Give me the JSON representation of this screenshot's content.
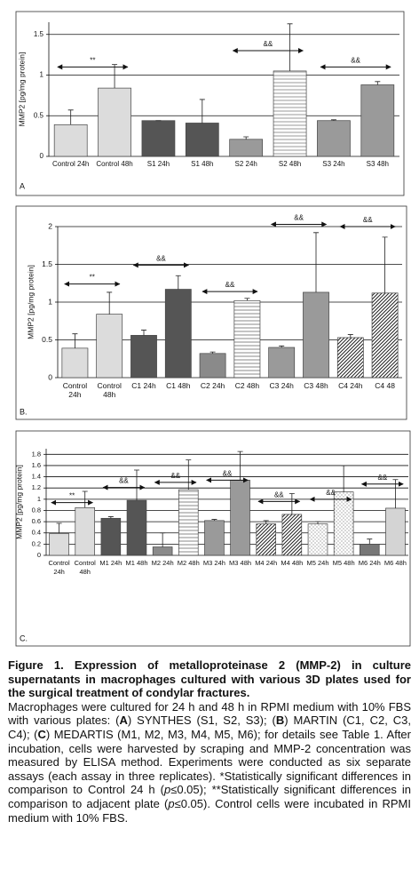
{
  "chart_data": [
    {
      "type": "bar",
      "panel_label": "A",
      "y_label": "MMP2 [pg/mg protein]",
      "categories": [
        "Control 24h",
        "Control 48h",
        "S1 24h",
        "S1 48h",
        "S2 24h",
        "S2 48h",
        "S3 24h",
        "S3 48h"
      ],
      "values": [
        0.39,
        0.84,
        0.44,
        0.41,
        0.21,
        1.05,
        0.44,
        0.88
      ],
      "errors": [
        0.18,
        0.29,
        0,
        0.29,
        0.03,
        0.58,
        0.01,
        0.04
      ],
      "colors": [
        "#dcdcdc",
        "#dcdcdc",
        "#555555",
        "#555555",
        "#9a9a9a",
        "#9a9a9a",
        "#9a9a9a",
        "#9a9a9a"
      ],
      "patterns": [
        "solid",
        "solid",
        "solid",
        "solid",
        "solid",
        "hstripe",
        "solid",
        "solid"
      ],
      "ylim": [
        0,
        1.65
      ],
      "yticks": [
        0,
        0.5,
        1,
        1.5
      ],
      "grid": true,
      "annotations": [
        {
          "text": "**",
          "x": [
            0,
            1
          ],
          "y": 1.1
        },
        {
          "text": "&&",
          "x": [
            4,
            5
          ],
          "y": 1.3
        },
        {
          "text": "&&",
          "x": [
            6,
            7
          ],
          "y": 1.1
        }
      ]
    },
    {
      "type": "bar",
      "panel_label": "B.",
      "y_label": "MMP2 [pg/mg protein]",
      "categories": [
        "Control 24h",
        "Control 48h",
        "C1 24h",
        "C1 48h",
        "C2 24h",
        "C2 48h",
        "C3 24h",
        "C3 48h",
        "C4 24h",
        "C4 48"
      ],
      "values": [
        0.39,
        0.84,
        0.56,
        1.17,
        0.32,
        1.02,
        0.4,
        1.13,
        0.53,
        1.12
      ],
      "errors": [
        0.19,
        0.29,
        0.07,
        0.18,
        0.02,
        0.03,
        0.02,
        0.79,
        0.04,
        0.74
      ],
      "colors": [
        "#dcdcdc",
        "#dcdcdc",
        "#555555",
        "#555555",
        "#8a8a8a",
        "#8a8a8a",
        "#9a9a9a",
        "#9a9a9a",
        "#222222",
        "#222222"
      ],
      "patterns": [
        "solid",
        "solid",
        "solid",
        "solid",
        "solid",
        "hstripe",
        "solid",
        "solid",
        "diag",
        "diag"
      ],
      "ylim": [
        0,
        2
      ],
      "yticks": [
        0,
        0.5,
        1,
        1.5,
        2
      ],
      "grid": true,
      "annotations": [
        {
          "text": "**",
          "x": [
            0,
            1
          ],
          "y": 1.24
        },
        {
          "text": "&&",
          "x": [
            2,
            3
          ],
          "y": 1.49
        },
        {
          "text": "&&",
          "x": [
            4,
            5
          ],
          "y": 1.14
        },
        {
          "text": "&&",
          "x": [
            6,
            7
          ],
          "y": 2.03
        },
        {
          "text": "&&",
          "x": [
            8,
            9
          ],
          "y": 2.0
        }
      ]
    },
    {
      "type": "bar",
      "panel_label": "C.",
      "y_label": "MMP2 [pg/mg protein]",
      "categories": [
        "Control 24h",
        "Control 48h",
        "M1 24h",
        "M1 48h",
        "M2 24h",
        "M2 48h",
        "M3 24h",
        "M3 48h",
        "M4 24h",
        "M4 48h",
        "M5 24h",
        "M5 48h",
        "M6 24h",
        "M6 48h"
      ],
      "values": [
        0.39,
        0.85,
        0.66,
        0.98,
        0.15,
        1.17,
        0.62,
        1.34,
        0.56,
        0.73,
        0.56,
        1.13,
        0.2,
        0.84
      ],
      "errors": [
        0.18,
        0.29,
        0.03,
        0.54,
        0.25,
        0.53,
        0.02,
        0.51,
        0.06,
        0.37,
        0.04,
        0.47,
        0.09,
        0.51
      ],
      "colors": [
        "#dcdcdc",
        "#dcdcdc",
        "#555555",
        "#555555",
        "#8a8a8a",
        "#8a8a8a",
        "#9a9a9a",
        "#9a9a9a",
        "#222222",
        "#222222",
        "#777777",
        "#777777",
        "#777777",
        "#d4d4d4"
      ],
      "patterns": [
        "solid",
        "solid",
        "solid",
        "solid",
        "solid",
        "hstripe",
        "solid",
        "solid",
        "diag",
        "diag",
        "dots",
        "dots",
        "solid",
        "solid"
      ],
      "ylim": [
        0,
        1.9
      ],
      "yticks": [
        0,
        0.2,
        0.4,
        0.6,
        0.8,
        1,
        1.2,
        1.4,
        1.6,
        1.8
      ],
      "grid": true,
      "annotations": [
        {
          "text": "**",
          "x": [
            0,
            1
          ],
          "y": 0.94
        },
        {
          "text": "&&",
          "x": [
            2,
            3
          ],
          "y": 1.21
        },
        {
          "text": "&&",
          "x": [
            4,
            5
          ],
          "y": 1.3
        },
        {
          "text": "&&",
          "x": [
            6,
            7
          ],
          "y": 1.34
        },
        {
          "text": "&&",
          "x": [
            8,
            9
          ],
          "y": 0.96
        },
        {
          "text": "&&",
          "x": [
            10,
            11
          ],
          "y": 1.0
        },
        {
          "text": "&&",
          "x": [
            12,
            13
          ],
          "y": 1.27
        }
      ]
    }
  ],
  "caption": {
    "title": "Figure 1. Expression of metalloproteinase 2 (MMP-2) in culture supernatants in macrophages cultured with various 3D plates used for the surgical treatment of condylar fractures.",
    "body": [
      "Macrophages were cultured for 24 h and 48 h in RPMI medium with 10% FBS with various plates: (",
      "A",
      ") SYNTHES (S1, S2, S3); (",
      "B",
      ") MARTIN (C1, C2, C3, C4); (",
      "C",
      ") MEDARTIS (M1, M2, M3, M4, M5, M6); for details see Table 1. After incubation, cells were harvested by scraping and MMP-2 concentration was measured by ELISA method. Experiments were conducted as six separate assays (each assay in three replicates). *Statistically significant differences in comparison to Control 24 h (",
      "p",
      "≤0.05); **Statistically significant differences in comparison to adjacent plate (",
      "p",
      "≤0.05). Control cells were incubated in RPMI medium with 10% FBS."
    ]
  }
}
